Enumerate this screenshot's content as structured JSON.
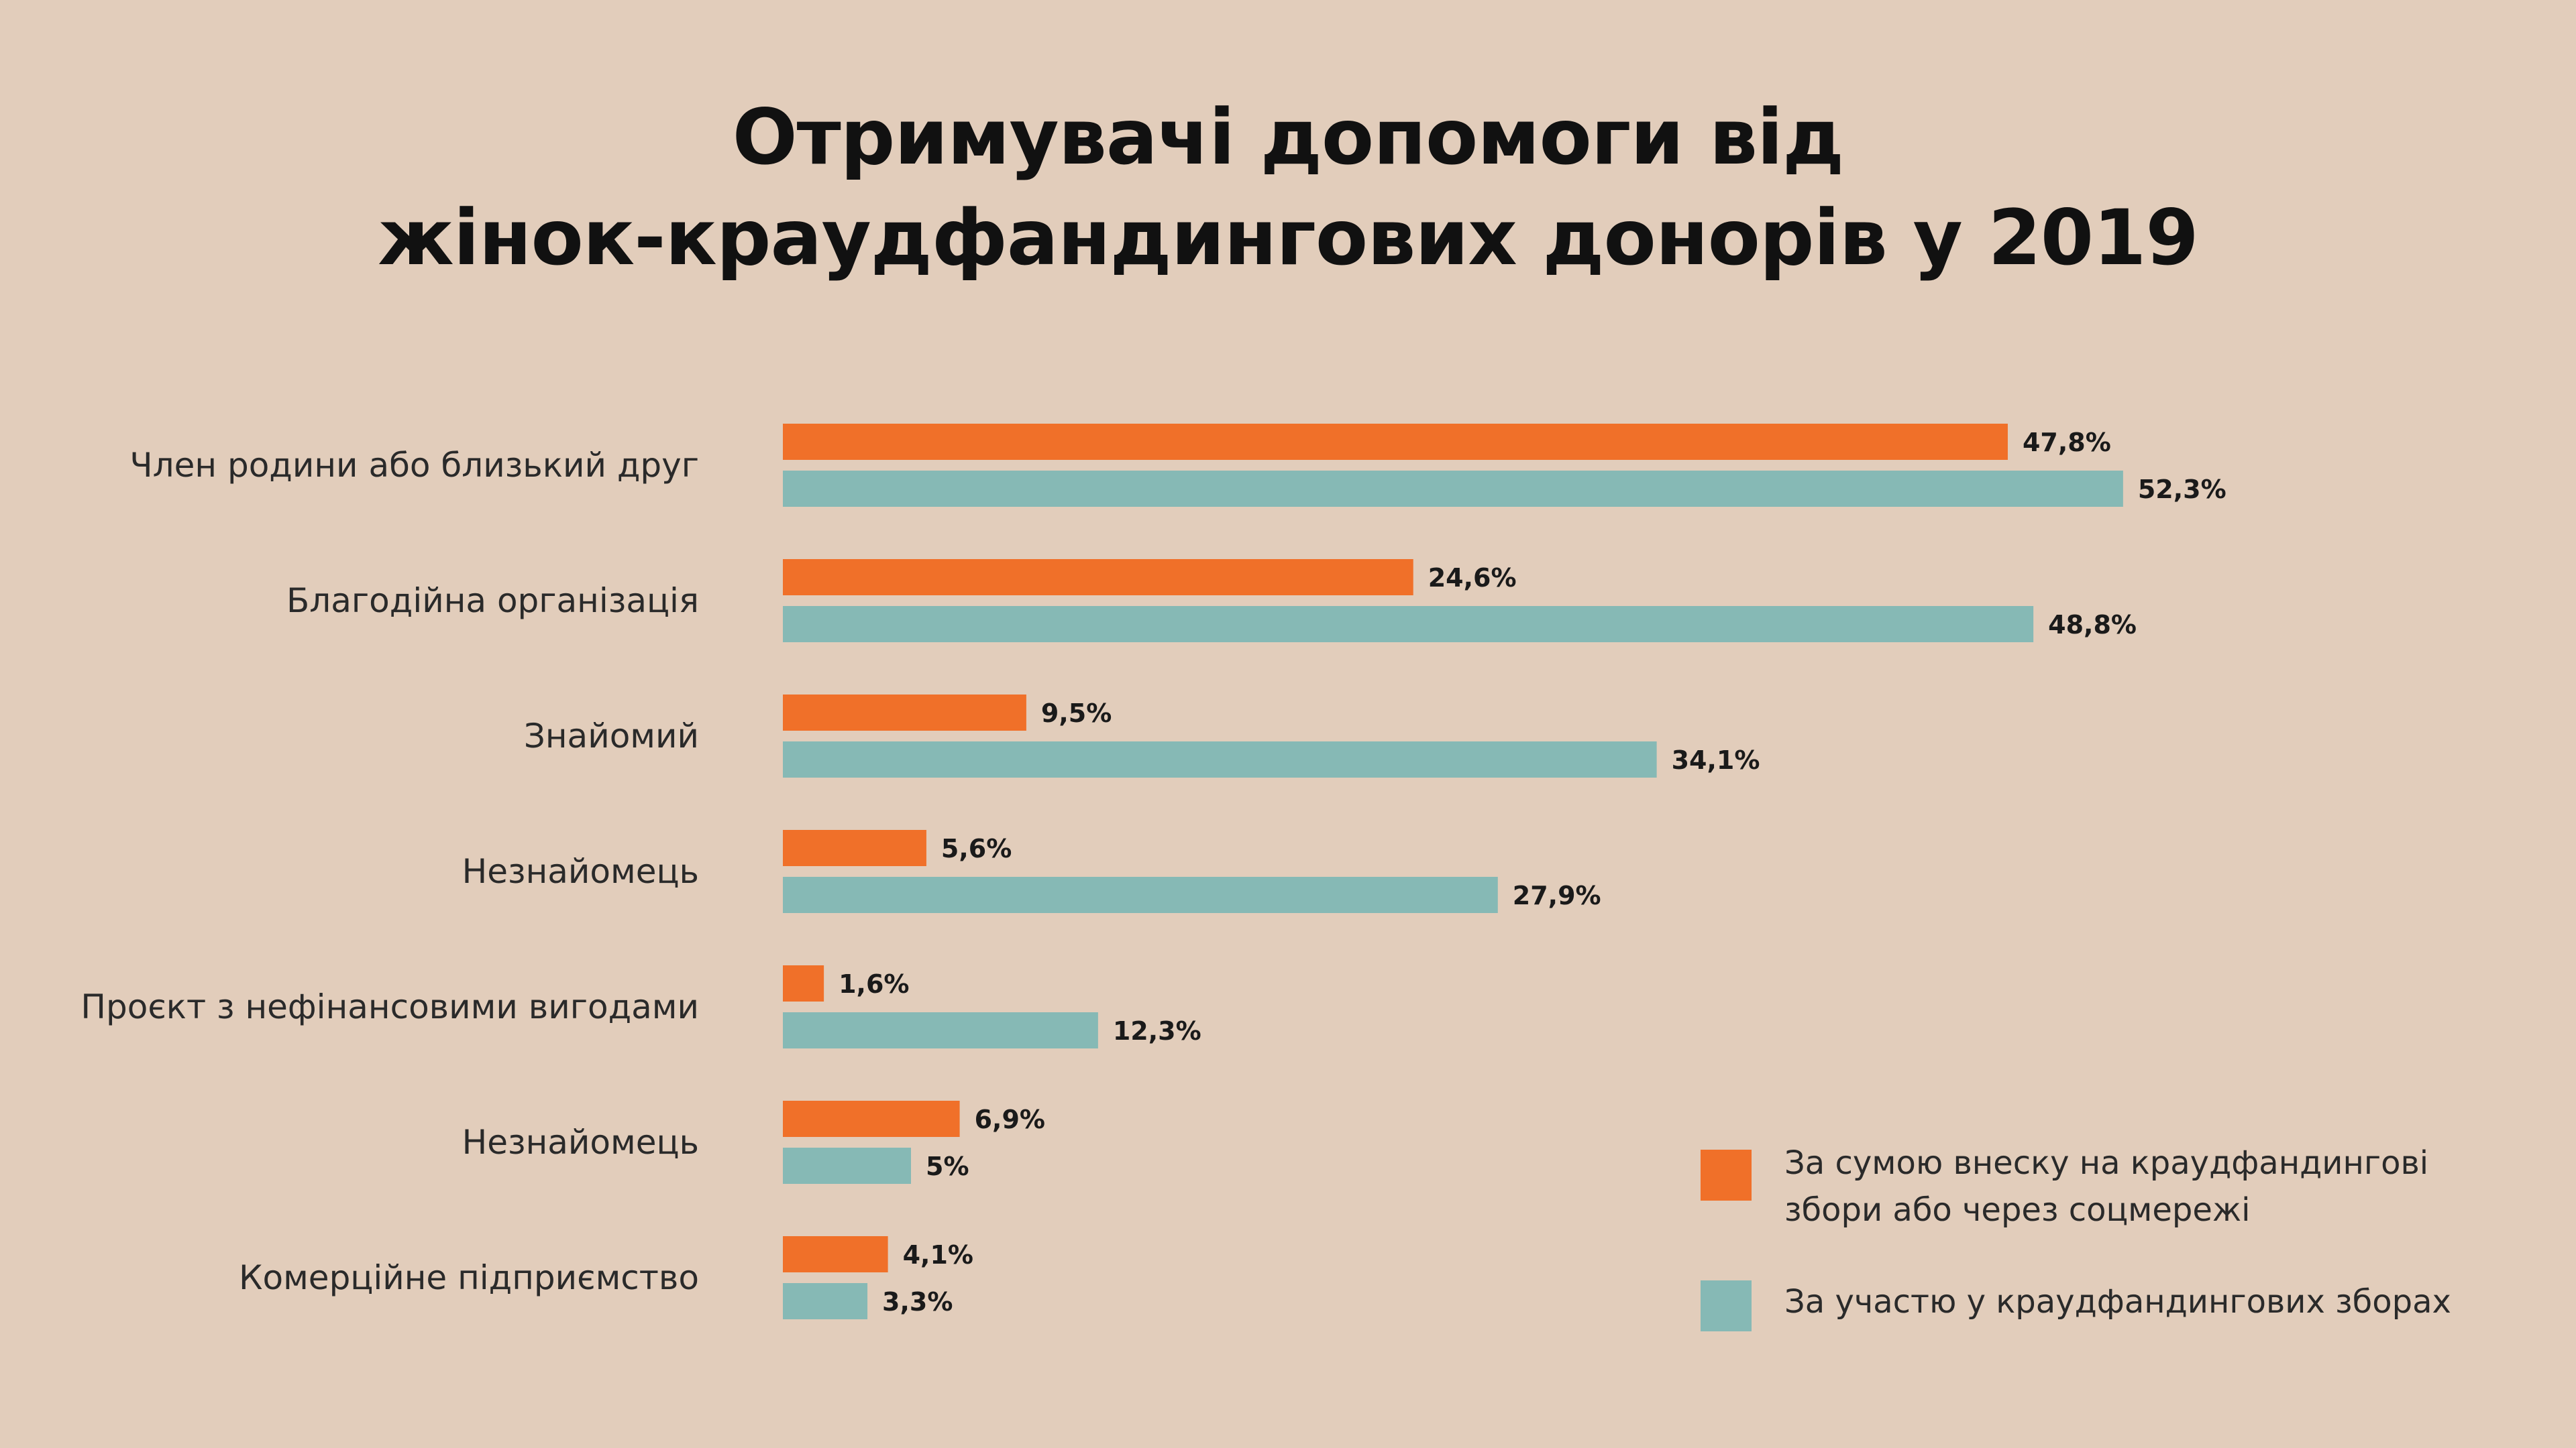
{
  "title": {
    "line1": "Отримувачі допомоги від",
    "line2": "жінок-краудфандингових донорів у 2019"
  },
  "colors": {
    "background": "#e2cdbb",
    "series_1": "#f07029",
    "series_2": "#86b9b5",
    "text": "#111111"
  },
  "chart_data": {
    "type": "bar",
    "orientation": "horizontal",
    "categories": [
      "Член родини або близький друг",
      "Благодійна організація",
      "Знайомий",
      "Незнайомець",
      "Проєкт з нефінансовими вигодами",
      "Незнайомець",
      "Комерційне підприємство"
    ],
    "series": [
      {
        "name": "За сумою внеску на краудфандингові збори або через соцмережі",
        "values": [
          47.8,
          24.6,
          9.5,
          5.6,
          1.6,
          6.9,
          4.1
        ],
        "labels": [
          "47,8%",
          "24,6%",
          "9,5%",
          "5,6%",
          "1,6%",
          "6,9%",
          "4,1%"
        ]
      },
      {
        "name": "За участю у краудфандингових зборах",
        "values": [
          52.3,
          48.8,
          34.1,
          27.9,
          12.3,
          5,
          3.3
        ],
        "labels": [
          "52,3%",
          "48,8%",
          "34,1%",
          "27,9%",
          "12,3%",
          "5%",
          "3,3%"
        ]
      }
    ],
    "unit": "%",
    "grid": false,
    "legend_position": "bottom-right"
  },
  "legend": {
    "items": [
      {
        "line1": "За сумою внеску на краудфандингові",
        "line2": "збори або через соцмережі"
      },
      {
        "line1": "За участю у краудфандингових зборах"
      }
    ]
  }
}
